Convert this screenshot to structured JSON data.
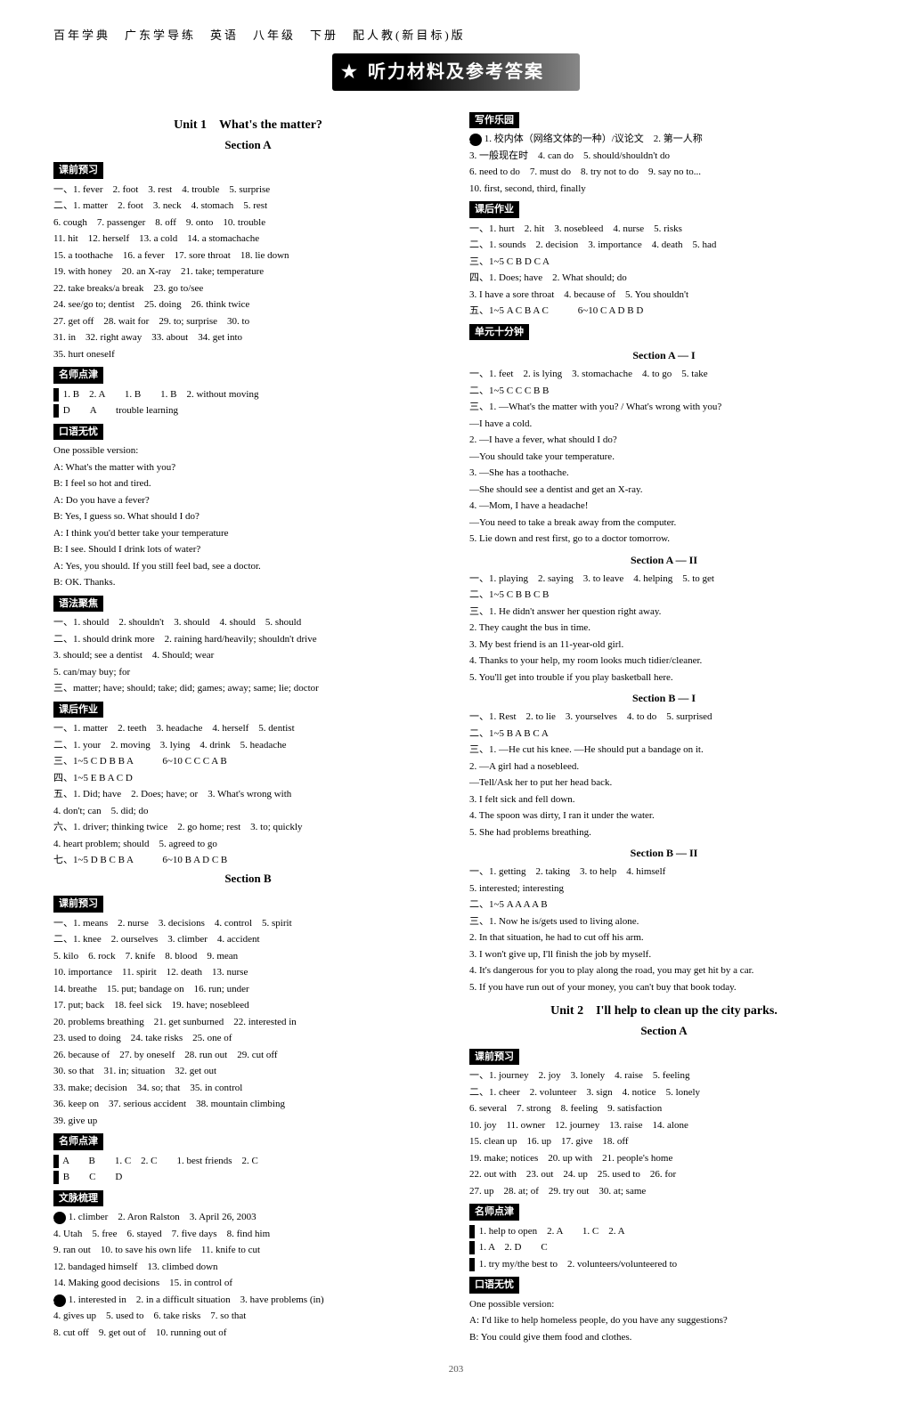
{
  "header": "百年学典　广东学导练　英语　八年级　下册　配人教(新目标)版",
  "banner": "听力材料及参考答案",
  "page_number": "203",
  "left": {
    "unit1_title": "Unit 1　What's the matter?",
    "section_a": "Section A",
    "tag_keqian": "课前预习",
    "yi1": "一、1. fever　2. foot　3. rest　4. trouble　5. surprise",
    "er1a": "二、1. matter　2. foot　3. neck　4. stomach　5. rest",
    "er1b": "6. cough　7. passenger　8. off　9. onto　10. trouble",
    "er1c": "11. hit　12. herself　13. a cold　14. a stomachache",
    "er1d": "15. a toothache　16. a fever　17. sore throat　18. lie down",
    "er1e": "19. with honey　20. an X-ray　21. take; temperature",
    "er1f": "22. take breaks/a break　23. go to/see",
    "er1g": "24. see/go to; dentist　25. doing　26. think twice",
    "er1h": "27. get off　28. wait for　29. to; surprise　30. to",
    "er1i": "31. in　32. right away　33. about　34. get into",
    "er1j": "35. hurt oneself",
    "tag_mingshi": "名师点津",
    "ms1": "1. B　2. A　　1. B　　1. B　2. without moving",
    "ms2": "D　　A　　trouble learning",
    "tag_kouyu": "口语无忧",
    "kouyu_intro": "One possible version:",
    "d1": "A: What's the matter with you?",
    "d2": "B: I feel so hot and tired.",
    "d3": "A: Do you have a fever?",
    "d4": "B: Yes, I guess so. What should I do?",
    "d5": "A: I think you'd better take your temperature",
    "d6": "B: I see. Should I drink lots of water?",
    "d7": "A: Yes, you should. If you still feel bad, see a doctor.",
    "d8": "B: OK. Thanks.",
    "tag_yufa": "语法聚焦",
    "yf1": "一、1. should　2. shouldn't　3. should　4. should　5. should",
    "yf2a": "二、1. should drink more　2. raining hard/heavily; shouldn't drive",
    "yf2b": "3. should; see a dentist　4. Should; wear",
    "yf2c": "5. can/may buy; for",
    "yf3": "三、matter; have; should; take; did; games; away; same; lie; doctor",
    "tag_kehou": "课后作业",
    "kh1": "一、1. matter　2. teeth　3. headache　4. herself　5. dentist",
    "kh2": "二、1. your　2. moving　3. lying　4. drink　5. headache",
    "kh3": "三、1~5 C D B B A　　　6~10 C C C A B",
    "kh4": "四、1~5 E B A C D",
    "kh5a": "五、1. Did; have　2. Does; have; or　3. What's wrong with",
    "kh5b": "4. don't; can　5. did; do",
    "kh6a": "六、1. driver; thinking twice　2. go home; rest　3. to; quickly",
    "kh6b": "4. heart problem; should　5. agreed to go",
    "kh7": "七、1~5 D B C B A　　　6~10 B A D C B",
    "section_b": "Section B",
    "tag_keqian2": "课前预习",
    "sb_yi": "一、1. means　2. nurse　3. decisions　4. control　5. spirit",
    "sb_er_a": "二、1. knee　2. ourselves　3. climber　4. accident",
    "sb_er_b": "5. kilo　6. rock　7. knife　8. blood　9. mean",
    "sb_er_c": "10. importance　11. spirit　12. death　13. nurse",
    "sb_er_d": "14. breathe　15. put; bandage on　16. run; under",
    "sb_er_e": "17. put; back　18. feel sick　19. have; nosebleed",
    "sb_er_f": "20. problems breathing　21. get sunburned　22. interested in",
    "sb_er_g": "23. used to doing　24. take risks　25. one of",
    "sb_er_h": "26. because of　27. by oneself　28. run out　29. cut off",
    "sb_er_i": "30. so that　31. in; situation　32. get out",
    "sb_er_j": "33. make; decision　34. so; that　35. in control",
    "sb_er_k": "36. keep on　37. serious accident　38. mountain climbing",
    "sb_er_l": "39. give up",
    "tag_mingshi2": "名师点津",
    "ms3": "A　　B　　1. C　2. C　　1. best friends　2. C",
    "ms4": "B　　C　　D",
    "tag_wenmai": "文脉梳理",
    "wm1a": "1. climber　2. Aron Ralston　3. April 26, 2003",
    "wm1b": "4. Utah　5. free　6. stayed　7. five days　8. find him",
    "wm1c": "9. ran out　10. to save his own life　11. knife to cut",
    "wm1d": "12. bandaged himself　13. climbed down",
    "wm1e": "14. Making good decisions　15. in control of",
    "wm2a": "1. interested in　2. in a difficult situation　3. have problems (in)",
    "wm2b": "4. gives up　5. used to　6. take risks　7. so that",
    "wm2c": "8. cut off　9. get out of　10. running out of"
  },
  "right": {
    "tag_xiezuo": "写作乐园",
    "xz1": "1. 校内体（网络文体的一种）/议论文　2. 第一人称",
    "xz2": "3. 一般现在时　4. can do　5. should/shouldn't do",
    "xz3": "6. need to do　7. must do　8. try not to do　9. say no to...",
    "xz4": "10. first, second, third, finally",
    "tag_kehou2": "课后作业",
    "khr1": "一、1. hurt　2. hit　3. nosebleed　4. nurse　5. risks",
    "khr2": "二、1. sounds　2. decision　3. importance　4. death　5. had",
    "khr3": "三、1~5 C B D C A",
    "khr4a": "四、1. Does; have　2. What should; do",
    "khr4b": "3. I have a sore throat　4. because of　5. You shouldn't",
    "khr5": "五、1~5 A C B A C　　　6~10 C A D B D",
    "tag_danyuan": "单元十分钟",
    "sec_a1": "Section A — I",
    "a1_1": "一、1. feet　2. is lying　3. stomachache　4. to go　5. take",
    "a1_2": "二、1~5 C C C B B",
    "a1_3a": "三、1. —What's the matter with you? / What's wrong with you?",
    "a1_3a2": "—I have a cold.",
    "a1_3b": "2. —I have a fever, what should I do?",
    "a1_3b2": "—You should take your temperature.",
    "a1_3c": "3. —She has a toothache.",
    "a1_3c2": "—She should see a dentist and get an X-ray.",
    "a1_3d": "4. —Mom, I have a headache!",
    "a1_3d2": "—You need to take a break away from the computer.",
    "a1_3e": "5. Lie down and rest first, go to a doctor tomorrow.",
    "sec_a2": "Section A — II",
    "a2_1": "一、1. playing　2. saying　3. to leave　4. helping　5. to get",
    "a2_2": "二、1~5 C B B C B",
    "a2_3a": "三、1. He didn't answer her question right away.",
    "a2_3b": "2. They caught the bus in time.",
    "a2_3c": "3. My best friend is an 11-year-old girl.",
    "a2_3d": "4. Thanks to your help, my room looks much tidier/cleaner.",
    "a2_3e": "5. You'll get into trouble if you play basketball here.",
    "sec_b1": "Section B — I",
    "b1_1": "一、1. Rest　2. to lie　3. yourselves　4. to do　5. surprised",
    "b1_2": "二、1~5 B A B C A",
    "b1_3a": "三、1. —He cut his knee. —He should put a bandage on it.",
    "b1_3b": "2. —A girl had a nosebleed.",
    "b1_3b2": "—Tell/Ask her to put her head back.",
    "b1_3c": "3. I felt sick and fell down.",
    "b1_3d": "4. The spoon was dirty, I ran it under the water.",
    "b1_3e": "5. She had problems breathing.",
    "sec_b2": "Section B — II",
    "b2_1a": "一、1. getting　2. taking　3. to help　4. himself",
    "b2_1b": "5. interested; interesting",
    "b2_2": "二、1~5 A A A A B",
    "b2_3a": "三、1. Now he is/gets used to living alone.",
    "b2_3b": "2. In that situation, he had to cut off his arm.",
    "b2_3c": "3. I won't give up, I'll finish the job by myself.",
    "b2_3d": "4. It's dangerous for you to play along the road, you may get hit by a car.",
    "b2_3e": "5. If you have run out of your money, you can't buy that book today.",
    "unit2_title": "Unit 2　I'll help to clean up the city parks.",
    "u2_section_a": "Section A",
    "tag_keqian3": "课前预习",
    "u2_yi": "一、1. journey　2. joy　3. lonely　4. raise　5. feeling",
    "u2_era": "二、1. cheer　2. volunteer　3. sign　4. notice　5. lonely",
    "u2_erb": "6. several　7. strong　8. feeling　9. satisfaction",
    "u2_erc": "10. joy　11. owner　12. journey　13. raise　14. alone",
    "u2_erd": "15. clean up　16. up　17. give　18. off",
    "u2_ere": "19. make; notices　20. up with　21. people's home",
    "u2_erf": "22. out with　23. out　24. up　25. used to　26. for",
    "u2_erg": "27. up　28. at; of　29. try out　30. at; same",
    "tag_mingshi3": "名师点津",
    "u2_ms1": "1. help to open　2. A　　1. C　2. A",
    "u2_ms2": "1. A　2. D　　C",
    "u2_ms3": "1. try my/the best to　2. volunteers/volunteered to",
    "tag_kouyu2": "口语无忧",
    "u2_ky_intro": "One possible version:",
    "u2_ky1": "A: I'd like to help homeless people, do you have any suggestions?",
    "u2_ky2": "B: You could give them food and clothes."
  }
}
